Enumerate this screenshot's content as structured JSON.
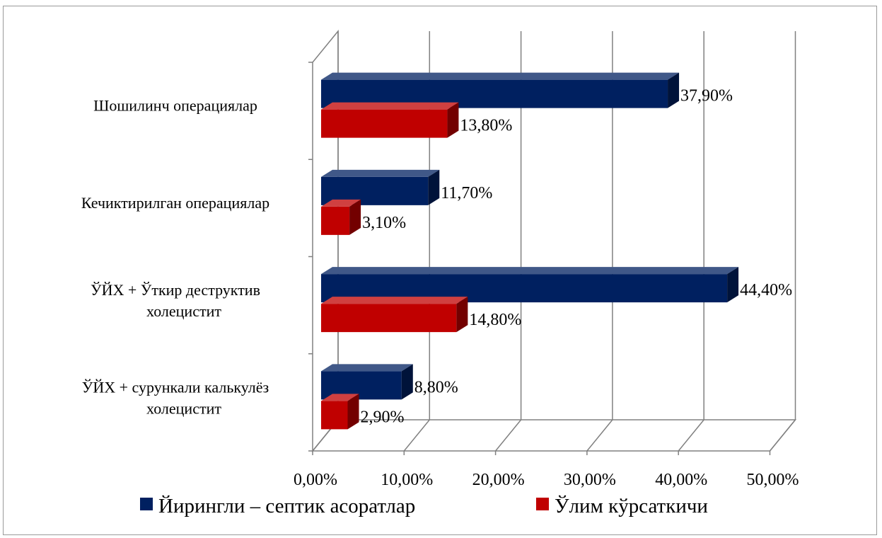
{
  "chart_data": {
    "type": "bar",
    "orientation": "horizontal",
    "style": "3d-clustered",
    "title": "",
    "xlabel": "",
    "ylabel": "",
    "xlim": [
      0,
      50
    ],
    "x_ticks": [
      "0,00%",
      "10,00%",
      "20,00%",
      "30,00%",
      "40,00%",
      "50,00%"
    ],
    "grid": true,
    "legend_position": "bottom",
    "categories": [
      [
        "Шошилинч операциялар"
      ],
      [
        "Кечиктирилган операциялар"
      ],
      [
        "ЎЙХ + Ўткир деструктив",
        "холецистит"
      ],
      [
        "ЎЙХ + сурункали калькулёз",
        "холецистит"
      ]
    ],
    "series": [
      {
        "name": "Йирингли – септик асоратлар",
        "color": "#002060",
        "values": [
          37.9,
          11.7,
          44.4,
          8.8
        ],
        "labels": [
          "37,90%",
          "11,70%",
          "44,40%",
          "8,80%"
        ]
      },
      {
        "name": "Ўлим кўрсаткичи",
        "color": "#C00000",
        "values": [
          13.8,
          3.1,
          14.8,
          2.9
        ],
        "labels": [
          "13,80%",
          "3,10%",
          "14,80%",
          "2,90%"
        ]
      }
    ]
  }
}
